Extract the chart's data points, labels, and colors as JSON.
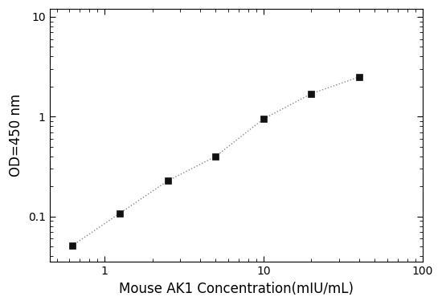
{
  "x": [
    0.625,
    1.25,
    2.5,
    5,
    10,
    20,
    40
  ],
  "y": [
    0.051,
    0.108,
    0.228,
    0.4,
    0.95,
    1.7,
    2.5
  ],
  "xlabel": "Mouse AK1 Concentration(mIU/mL)",
  "ylabel": "OD=450 nm",
  "xlim": [
    0.45,
    100
  ],
  "ylim": [
    0.035,
    12
  ],
  "xticks": [
    1,
    10,
    100
  ],
  "yticks": [
    0.1,
    1,
    10
  ],
  "xtick_labels": [
    "1",
    "10",
    "100"
  ],
  "ytick_labels": [
    "0.1",
    "1",
    "10"
  ],
  "marker": "s",
  "marker_color": "#111111",
  "marker_size": 6,
  "line_style": ":",
  "line_color": "#888888",
  "line_width": 1.0,
  "background_color": "#ffffff",
  "xlabel_fontsize": 12,
  "ylabel_fontsize": 12,
  "tick_fontsize": 10,
  "spine_linewidth": 0.8
}
